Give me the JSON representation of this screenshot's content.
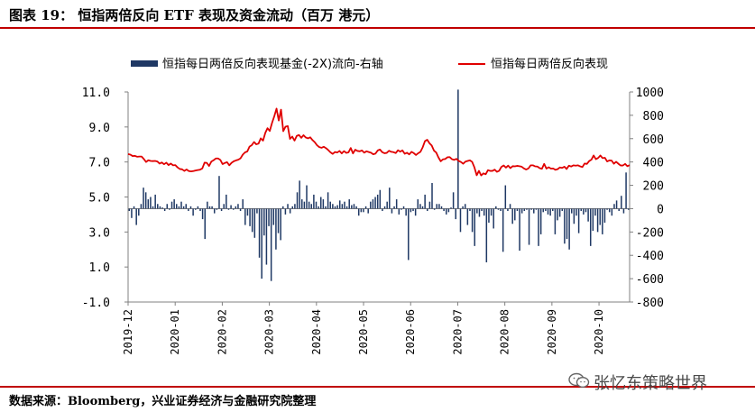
{
  "header": {
    "title": "图表 19： 恒指两倍反向 ETF 表现及资金流动（百万 港元）"
  },
  "footer": {
    "source": "数据来源：Bloomberg，兴业证券经济与金融研究院整理",
    "watermark": "张忆东策略世界"
  },
  "colors": {
    "bars": "#1f3864",
    "line": "#e00000",
    "rule": "#c00000",
    "axis": "#808080"
  },
  "chart_data": {
    "type": "bar",
    "title": "",
    "legend_position": "top",
    "grid": false,
    "left_axis": {
      "ylim": [
        -1,
        11
      ],
      "ticks": [
        "11.0",
        "9.0",
        "7.0",
        "5.0",
        "3.0",
        "1.0",
        "-1.0"
      ]
    },
    "right_axis": {
      "ylim": [
        -800,
        1000
      ],
      "ticks": [
        "1000",
        "800",
        "600",
        "400",
        "200",
        "0",
        "-200",
        "-400",
        "-600",
        "-800"
      ]
    },
    "x_ticks": [
      "2019-12",
      "2020-01",
      "2020-02",
      "2020-03",
      "2020-04",
      "2020-05",
      "2020-06",
      "2020-07",
      "2020-08",
      "2020-09",
      "2020-10"
    ],
    "series": [
      {
        "name": "恒指每日两倍反向表现基金(-2X)流向-右轴",
        "type": "bar",
        "axis": "right",
        "values": [
          -20,
          -80,
          20,
          -140,
          -60,
          40,
          180,
          140,
          80,
          100,
          20,
          120,
          40,
          20,
          10,
          -20,
          40,
          -10,
          60,
          80,
          40,
          20,
          60,
          20,
          40,
          -20,
          20,
          -60,
          -10,
          20,
          -20,
          -90,
          -260,
          60,
          20,
          20,
          -40,
          -10,
          280,
          -20,
          40,
          120,
          -10,
          30,
          -10,
          20,
          40,
          -20,
          80,
          -140,
          -60,
          -150,
          -200,
          -250,
          -40,
          -420,
          -600,
          -230,
          -480,
          -150,
          -620,
          -140,
          -350,
          -210,
          -270,
          20,
          -50,
          40,
          -40,
          20,
          40,
          140,
          240,
          80,
          60,
          200,
          60,
          40,
          120,
          60,
          20,
          100,
          80,
          20,
          140,
          60,
          40,
          20,
          30,
          70,
          40,
          60,
          20,
          80,
          30,
          40,
          20,
          -60,
          -30,
          -30,
          20,
          -40,
          60,
          80,
          100,
          120,
          160,
          -20,
          20,
          60,
          180,
          -40,
          20,
          80,
          -50,
          -10,
          20,
          -60,
          -440,
          -30,
          -20,
          -60,
          80,
          40,
          20,
          120,
          -20,
          60,
          220,
          -10,
          40,
          40,
          20,
          -20,
          -50,
          -30,
          10,
          140,
          -90,
          1020,
          -200,
          20,
          40,
          -140,
          -20,
          -200,
          -320,
          -40,
          -70,
          -20,
          -60,
          -460,
          -120,
          -60,
          -170,
          20,
          -10,
          -20,
          -370,
          200,
          -20,
          40,
          -130,
          -100,
          -20,
          -360,
          -40,
          -20,
          -10,
          -310,
          -10,
          -40,
          -10,
          -320,
          -220,
          -30,
          -20,
          -50,
          -60,
          -20,
          -220,
          -100,
          -70,
          -20,
          -300,
          -260,
          -350,
          -40,
          -130,
          -60,
          -210,
          -20,
          -50,
          -30,
          -110,
          -320,
          -190,
          -60,
          -200,
          -140,
          -220,
          -120,
          -10,
          -30,
          -60,
          40,
          70,
          -20,
          110,
          -40,
          310,
          -10
        ]
      },
      {
        "name": "恒指每日两倍反向表现",
        "type": "line",
        "axis": "left",
        "values": [
          7.45,
          7.42,
          7.34,
          7.35,
          7.3,
          7.31,
          7.31,
          7.17,
          7.0,
          7.1,
          7.06,
          7.05,
          7.06,
          7.03,
          6.91,
          6.97,
          6.87,
          6.96,
          6.82,
          6.91,
          6.81,
          6.82,
          6.69,
          6.6,
          6.58,
          6.49,
          6.57,
          6.48,
          6.46,
          6.48,
          6.51,
          6.54,
          6.56,
          6.63,
          6.96,
          6.95,
          6.77,
          7.02,
          7.1,
          7.2,
          7.2,
          7.12,
          6.88,
          6.94,
          6.99,
          6.81,
          6.95,
          7.04,
          7.09,
          7.13,
          7.21,
          7.42,
          7.55,
          7.6,
          7.88,
          7.96,
          8.14,
          8.01,
          8.05,
          8.35,
          8.22,
          8.66,
          8.93,
          8.77,
          9.23,
          9.61,
          10.05,
          9.37,
          9.99,
          8.76,
          9.02,
          9.05,
          8.32,
          8.45,
          8.22,
          8.49,
          8.54,
          8.38,
          8.53,
          8.4,
          8.35,
          8.41,
          8.25,
          8.13,
          7.96,
          7.85,
          7.81,
          7.87,
          7.79,
          7.68,
          7.55,
          7.46,
          7.57,
          7.54,
          7.63,
          7.49,
          7.62,
          7.52,
          7.55,
          7.8,
          7.49,
          7.7,
          7.63,
          7.61,
          7.66,
          7.53,
          7.61,
          7.57,
          7.53,
          7.44,
          7.48,
          7.66,
          7.71,
          7.56,
          7.5,
          7.52,
          7.64,
          7.58,
          7.56,
          7.51,
          7.67,
          7.59,
          7.66,
          7.47,
          7.53,
          7.43,
          7.58,
          7.51,
          7.4,
          7.5,
          7.58,
          7.84,
          8.19,
          8.27,
          8.07,
          7.94,
          7.65,
          7.54,
          7.26,
          7.04,
          7.15,
          7.17,
          7.27,
          7.28,
          7.16,
          7.12,
          7.18,
          7.06,
          7.0,
          6.9,
          7.02,
          7.06,
          7.09,
          7.0,
          6.69,
          6.24,
          6.49,
          6.23,
          6.35,
          6.3,
          6.53,
          6.49,
          6.49,
          6.56,
          6.44,
          6.5,
          6.72,
          6.8,
          6.68,
          6.79,
          6.65,
          6.76,
          6.75,
          6.78,
          6.76,
          6.73,
          6.63,
          6.57,
          6.63,
          6.81,
          6.81,
          6.75,
          6.74,
          6.65,
          6.61,
          6.89,
          6.62,
          6.7,
          6.62,
          6.63,
          6.55,
          6.59,
          6.69,
          6.66,
          6.73,
          6.6,
          6.79,
          6.74,
          6.81,
          6.79,
          6.81,
          6.75,
          6.71,
          6.91,
          6.89,
          7.05,
          7.13,
          7.37,
          7.16,
          7.23,
          7.37,
          7.22,
          7.24,
          7.03,
          7.09,
          7.08,
          6.9,
          7.01,
          6.9,
          6.8,
          6.8,
          6.89,
          6.76,
          6.82
        ]
      }
    ]
  }
}
